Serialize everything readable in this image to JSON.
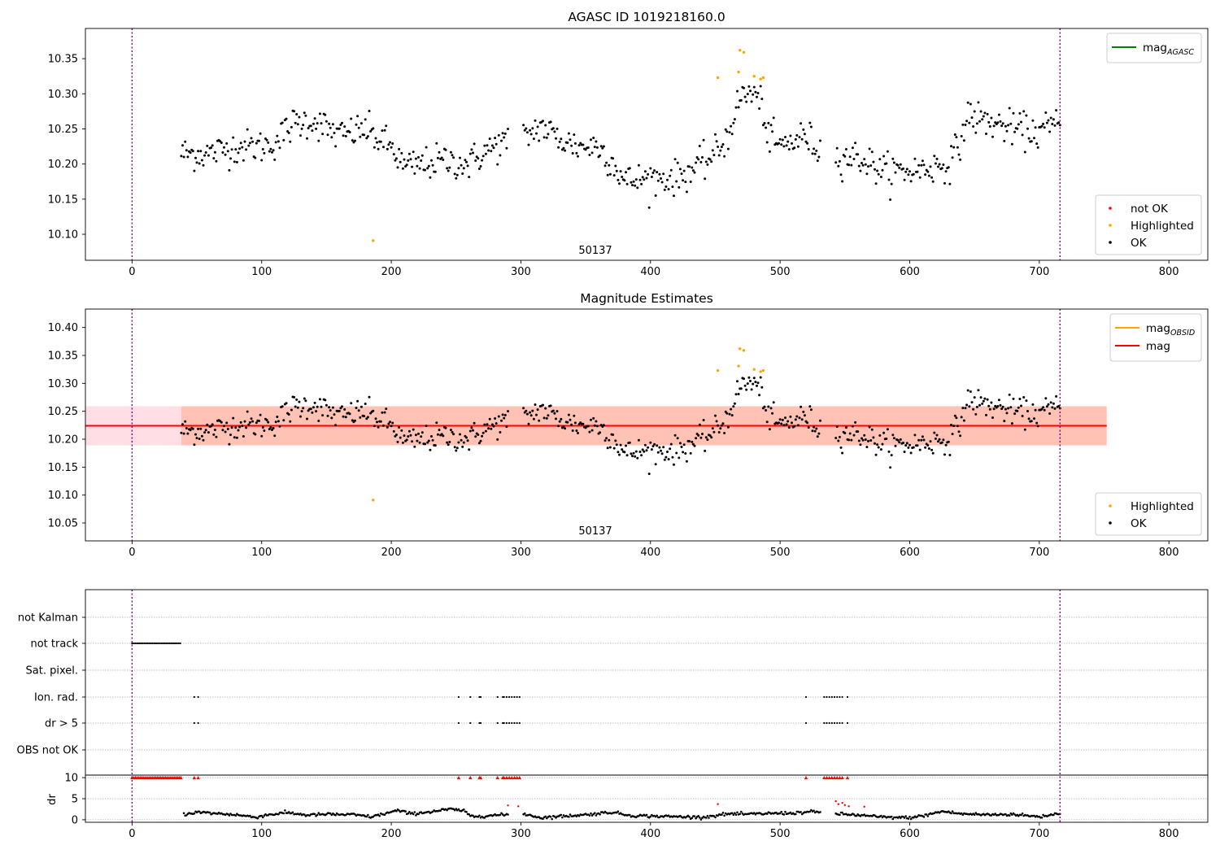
{
  "figure": {
    "background": "#ffffff"
  },
  "chart_data": [
    {
      "id": "p1",
      "type": "scatter",
      "title": "AGASC ID 1019218160.0",
      "xlim": [
        -36,
        830
      ],
      "ylim": [
        10.063,
        10.393
      ],
      "xticks": [
        0,
        100,
        200,
        300,
        400,
        500,
        600,
        700,
        800
      ],
      "xtick_labels": [
        "0",
        "100",
        "200",
        "300",
        "400",
        "500",
        "600",
        "700",
        "800"
      ],
      "yticks": [
        10.1,
        10.15,
        10.2,
        10.25,
        10.3,
        10.35
      ],
      "ytick_labels": [
        "10.10",
        "10.15",
        "10.20",
        "10.25",
        "10.30",
        "10.35"
      ],
      "vlines": [
        0,
        716
      ],
      "obsid_label": {
        "text": "50137",
        "x": 357
      },
      "legend_upper": [
        {
          "label": "mag",
          "sub": "AGASC",
          "color": "#008000"
        }
      ],
      "legend_lower": [
        {
          "label": "not OK",
          "color": "#ff0000"
        },
        {
          "label": "Highlighted",
          "color": "#ffa500"
        },
        {
          "label": "OK",
          "color": "#000000"
        }
      ],
      "highlighted_points": [
        {
          "x": 186,
          "y": 10.091
        },
        {
          "x": 452,
          "y": 10.323
        },
        {
          "x": 468,
          "y": 10.331
        },
        {
          "x": 469,
          "y": 10.362
        },
        {
          "x": 472,
          "y": 10.359
        },
        {
          "x": 480,
          "y": 10.325
        },
        {
          "x": 485,
          "y": 10.321
        },
        {
          "x": 487,
          "y": 10.323
        }
      ],
      "series": [
        {
          "name": "OK",
          "color": "#000000",
          "x_range": [
            38,
            716
          ],
          "x_step": 1,
          "knots": [
            [
              38,
              10.215
            ],
            [
              60,
              10.215
            ],
            [
              80,
              10.225
            ],
            [
              100,
              10.225
            ],
            [
              110,
              10.23
            ],
            [
              125,
              10.258
            ],
            [
              140,
              10.262
            ],
            [
              160,
              10.24
            ],
            [
              180,
              10.25
            ],
            [
              190,
              10.235
            ],
            [
              200,
              10.225
            ],
            [
              210,
              10.195
            ],
            [
              225,
              10.2
            ],
            [
              240,
              10.205
            ],
            [
              260,
              10.2
            ],
            [
              270,
              10.215
            ],
            [
              285,
              10.23
            ],
            [
              298,
              10.235
            ],
            [
              305,
              10.24
            ],
            [
              315,
              10.255
            ],
            [
              330,
              10.235
            ],
            [
              345,
              10.225
            ],
            [
              360,
              10.225
            ],
            [
              372,
              10.2
            ],
            [
              380,
              10.175
            ],
            [
              400,
              10.18
            ],
            [
              420,
              10.18
            ],
            [
              440,
              10.2
            ],
            [
              450,
              10.215
            ],
            [
              460,
              10.24
            ],
            [
              465,
              10.275
            ],
            [
              472,
              10.3
            ],
            [
              480,
              10.3
            ],
            [
              487,
              10.28
            ],
            [
              490,
              10.24
            ],
            [
              500,
              10.225
            ],
            [
              520,
              10.24
            ],
            [
              530,
              10.22
            ],
            [
              548,
              10.21
            ],
            [
              560,
              10.21
            ],
            [
              570,
              10.2
            ],
            [
              580,
              10.19
            ],
            [
              600,
              10.19
            ],
            [
              615,
              10.195
            ],
            [
              630,
              10.2
            ],
            [
              638,
              10.225
            ],
            [
              645,
              10.27
            ],
            [
              660,
              10.26
            ],
            [
              680,
              10.25
            ],
            [
              700,
              10.245
            ],
            [
              716,
              10.26
            ]
          ],
          "noise": 0.012,
          "gaps": [
            [
              291,
              301
            ],
            [
              532,
              542
            ]
          ]
        }
      ]
    },
    {
      "id": "p2",
      "type": "scatter",
      "title": "Magnitude Estimates",
      "xlim": [
        -36,
        830
      ],
      "ylim": [
        10.018,
        10.433
      ],
      "xticks": [
        0,
        100,
        200,
        300,
        400,
        500,
        600,
        700,
        800
      ],
      "xtick_labels": [
        "0",
        "100",
        "200",
        "300",
        "400",
        "500",
        "600",
        "700",
        "800"
      ],
      "yticks": [
        10.05,
        10.1,
        10.15,
        10.2,
        10.25,
        10.3,
        10.35,
        10.4
      ],
      "ytick_labels": [
        "10.05",
        "10.10",
        "10.15",
        "10.20",
        "10.25",
        "10.30",
        "10.35",
        "10.40"
      ],
      "vlines": [
        0,
        716
      ],
      "obsid_label": {
        "text": "50137",
        "x": 357
      },
      "mag": 10.224,
      "mag_band": [
        10.189,
        10.259
      ],
      "mag_band_x": [
        -36,
        752
      ],
      "obsid_band_x": [
        38,
        752
      ],
      "legend_upper": [
        {
          "label": "mag",
          "sub": "OBSID",
          "color": "#ffa500"
        },
        {
          "label": "mag",
          "sub": "",
          "color": "#ff0000"
        }
      ],
      "legend_lower": [
        {
          "label": "Highlighted",
          "color": "#ffa500"
        },
        {
          "label": "OK",
          "color": "#000000"
        }
      ],
      "same_points_as": "p1"
    },
    {
      "id": "p3",
      "type": "scatter",
      "xlim": [
        -36,
        830
      ],
      "xticks": [
        0,
        100,
        200,
        300,
        400,
        500,
        600,
        700,
        800
      ],
      "xtick_labels": [
        "0",
        "100",
        "200",
        "300",
        "400",
        "500",
        "600",
        "700",
        "800"
      ],
      "vlines": [
        0,
        716
      ],
      "flag_rows": [
        "not Kalman",
        "not track",
        "Sat. pixel.",
        "Ion. rad.",
        "dr > 5",
        "OBS not OK"
      ],
      "flags": {
        "not track": {
          "ranges": [
            [
              0,
              38
            ]
          ]
        },
        "Ion. rad.": {
          "points": [
            48,
            51,
            252,
            261,
            268,
            269,
            282,
            286,
            287,
            289,
            291,
            293,
            295,
            297,
            299,
            520,
            534,
            536,
            538,
            540,
            542,
            544,
            546,
            548,
            552
          ]
        },
        "dr > 5": {
          "points": [
            48,
            51,
            252,
            261,
            268,
            269,
            282,
            286,
            287,
            289,
            291,
            293,
            295,
            297,
            299,
            520,
            534,
            536,
            538,
            540,
            542,
            544,
            546,
            548,
            552
          ]
        }
      },
      "dr_ylabel": "dr",
      "dr_yticks": [
        0,
        5,
        10
      ],
      "dr_ytick_labels": [
        "0",
        "5",
        "10"
      ],
      "dr_ylim": [
        -0.6,
        10.6
      ],
      "dr_clipped_value": 10,
      "dr_clipped_points": [
        [
          0,
          38
        ],
        48,
        51,
        252,
        261,
        268,
        269,
        282,
        286,
        287,
        289,
        291,
        293,
        295,
        297,
        299,
        520,
        534,
        536,
        538,
        540,
        542,
        544,
        546,
        548,
        552
      ],
      "dr_red_points": [
        {
          "x": 290,
          "y": 3.4
        },
        {
          "x": 298,
          "y": 3.2
        },
        {
          "x": 452,
          "y": 3.7
        },
        {
          "x": 543,
          "y": 4.4
        },
        {
          "x": 545,
          "y": 3.7
        },
        {
          "x": 548,
          "y": 4.0
        },
        {
          "x": 550,
          "y": 3.5
        },
        {
          "x": 553,
          "y": 3.2
        },
        {
          "x": 565,
          "y": 3.1
        }
      ],
      "dr_knots": [
        [
          40,
          1.3
        ],
        [
          50,
          1.8
        ],
        [
          60,
          1.6
        ],
        [
          80,
          1.2
        ],
        [
          95,
          0.6
        ],
        [
          105,
          1.2
        ],
        [
          120,
          1.7
        ],
        [
          135,
          1.1
        ],
        [
          150,
          1.3
        ],
        [
          170,
          1.2
        ],
        [
          185,
          0.7
        ],
        [
          205,
          2.2
        ],
        [
          215,
          1.4
        ],
        [
          230,
          1.9
        ],
        [
          245,
          2.5
        ],
        [
          255,
          2.2
        ],
        [
          262,
          0.8
        ],
        [
          290,
          1.2
        ],
        [
          300,
          1.6
        ],
        [
          315,
          0.5
        ],
        [
          330,
          0.8
        ],
        [
          350,
          1.2
        ],
        [
          370,
          1.8
        ],
        [
          385,
          1.0
        ],
        [
          410,
          0.8
        ],
        [
          440,
          0.6
        ],
        [
          460,
          1.4
        ],
        [
          475,
          1.3
        ],
        [
          490,
          1.5
        ],
        [
          510,
          1.6
        ],
        [
          525,
          1.9
        ],
        [
          540,
          1.5
        ],
        [
          560,
          1.1
        ],
        [
          580,
          0.6
        ],
        [
          600,
          0.5
        ],
        [
          610,
          0.9
        ],
        [
          625,
          2.0
        ],
        [
          640,
          1.4
        ],
        [
          660,
          1.2
        ],
        [
          680,
          1.3
        ],
        [
          700,
          0.7
        ],
        [
          716,
          1.6
        ]
      ],
      "dr_gaps": [
        [
          291,
          301
        ],
        [
          532,
          542
        ]
      ]
    }
  ]
}
